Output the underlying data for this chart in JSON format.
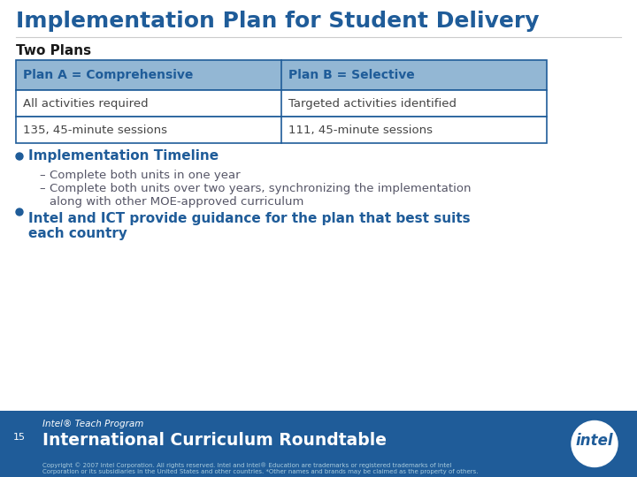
{
  "title": "Implementation Plan for Student Delivery",
  "title_color": "#1F5C99",
  "title_fontsize": 18,
  "background_color": "#FFFFFF",
  "section_label": "Two Plans",
  "section_label_color": "#1a1a1a",
  "section_label_fontsize": 11,
  "table_header_bg": "#93B7D4",
  "table_body_bg": "#FFFFFF",
  "table_border_color": "#1F5C99",
  "table_header_text_color": "#1F5C99",
  "table_body_text_color": "#444444",
  "table_headers": [
    "Plan A = Comprehensive",
    "Plan B = Selective"
  ],
  "table_rows": [
    [
      "All activities required",
      "Targeted activities identified"
    ],
    [
      "135, 45-minute sessions",
      "111, 45-minute sessions"
    ]
  ],
  "bullet1_title": "Implementation Timeline",
  "bullet1_color": "#1F5C99",
  "bullet1_fontsize": 11,
  "sub_bullets": [
    "Complete both units in one year",
    "Complete both units over two years, synchronizing the implementation\nalong with other MOE-approved curriculum"
  ],
  "sub_bullet_color": "#555566",
  "sub_bullet_fontsize": 9.5,
  "bullet2_text": "Intel and ICT provide guidance for the plan that best suits\neach country",
  "bullet2_color": "#1F5C99",
  "bullet2_fontsize": 11,
  "footer_bg": "#1F5C99",
  "footer_small_text": "Intel® Teach Program",
  "footer_large_text": "International Curriculum Roundtable",
  "footer_small_color": "#FFFFFF",
  "footer_large_color": "#FFFFFF",
  "footer_copy_text": "Copyright © 2007 Intel Corporation. All rights reserved. Intel and Intel® Education are trademarks or registered trademarks of Intel\nCorporation or its subsidiaries in the United States and other countries. *Other names and brands may be claimed as the property of others.",
  "footer_copy_color": "#AACCDD",
  "page_num": "15"
}
